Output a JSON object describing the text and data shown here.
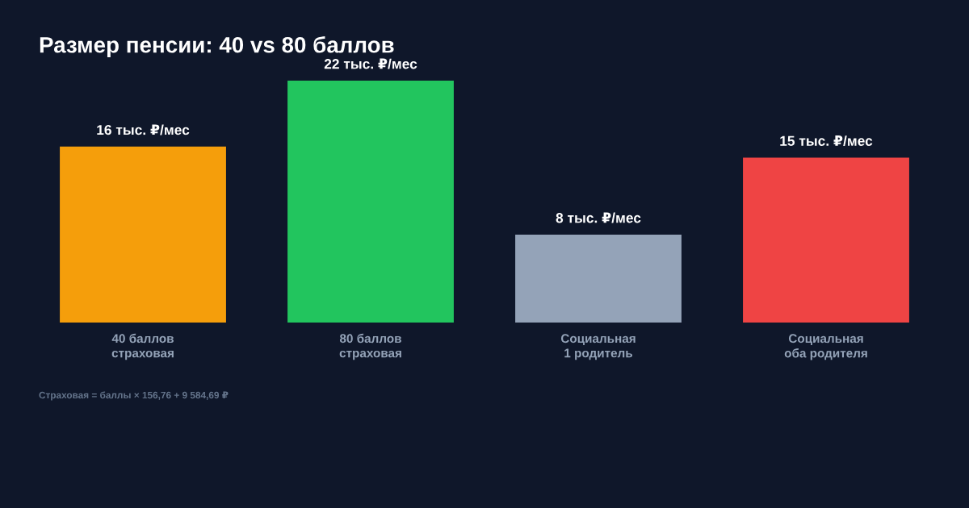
{
  "chart_data": {
    "type": "bar",
    "title": "Размер пенсии: 40 vs 80 баллов",
    "categories": [
      "40 баллов\nстраховая",
      "80 баллов\nстраховая",
      "Социальная\n1 родитель",
      "Социальная\nоба родителя"
    ],
    "values": [
      16,
      22,
      8,
      15
    ],
    "colors": [
      "#f59e0b",
      "#22c55e",
      "#94a3b8",
      "#ef4444"
    ],
    "value_labels": [
      "16 тыс. ₽/мес",
      "22 тыс. ₽/мес",
      "8 тыс. ₽/мес",
      "15 тыс. ₽/мес"
    ],
    "annotations": [
      "Страховая = баллы × 156,76 + 9 584,69 ₽"
    ]
  }
}
